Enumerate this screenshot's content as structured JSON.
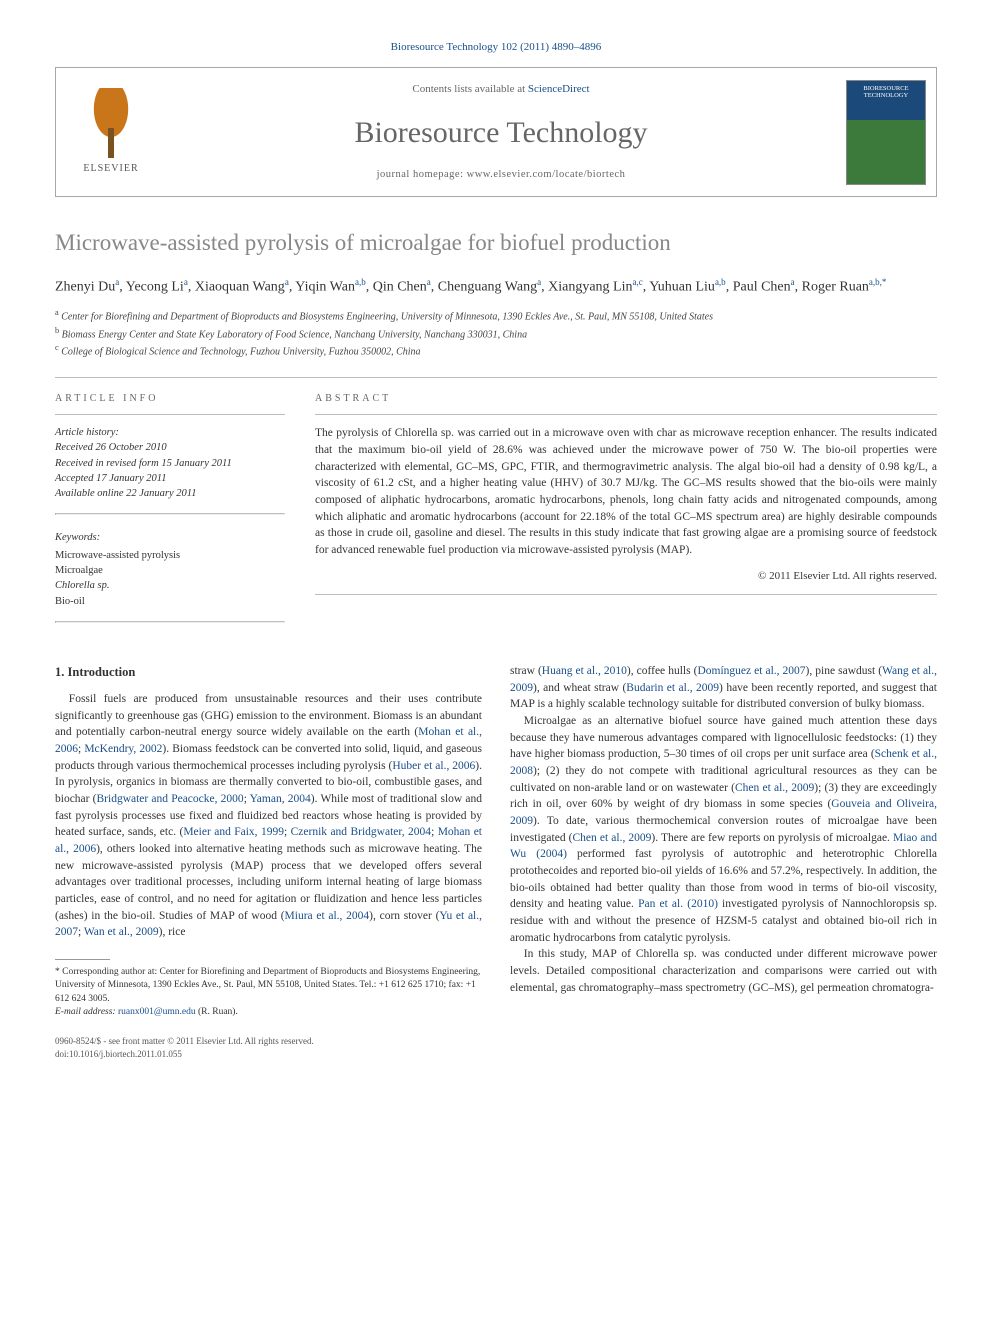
{
  "journal_ref": {
    "prefix": "Bioresource Technology 102 (2011) 4890–4896",
    "link_text": ""
  },
  "header": {
    "contents_prefix": "Contents lists available at ",
    "contents_link": "ScienceDirect",
    "journal_name": "Bioresource Technology",
    "homepage_prefix": "journal homepage: ",
    "homepage_url": "www.elsevier.com/locate/biortech",
    "elsevier_label": "ELSEVIER",
    "cover_text": "BIORESOURCE TECHNOLOGY"
  },
  "article": {
    "title": "Microwave-assisted pyrolysis of microalgae for biofuel production",
    "authors_html": "Zhenyi Du<sup>a</sup>, Yecong Li<sup>a</sup>, Xiaoquan Wang<sup>a</sup>, Yiqin Wan<sup>a,b</sup>, Qin Chen<sup>a</sup>, Chenguang Wang<sup>a</sup>, Xiangyang Lin<sup>a,c</sup>, Yuhuan Liu<sup>a,b</sup>, Paul Chen<sup>a</sup>, Roger Ruan<sup>a,b,*</sup>",
    "affiliations": [
      "a Center for Biorefining and Department of Bioproducts and Biosystems Engineering, University of Minnesota, 1390 Eckles Ave., St. Paul, MN 55108, United States",
      "b Biomass Energy Center and State Key Laboratory of Food Science, Nanchang University, Nanchang 330031, China",
      "c College of Biological Science and Technology, Fuzhou University, Fuzhou 350002, China"
    ]
  },
  "info": {
    "label": "ARTICLE INFO",
    "history_label": "Article history:",
    "history": [
      "Received 26 October 2010",
      "Received in revised form 15 January 2011",
      "Accepted 17 January 2011",
      "Available online 22 January 2011"
    ],
    "keywords_label": "Keywords:",
    "keywords": [
      "Microwave-assisted pyrolysis",
      "Microalgae",
      "Chlorella sp.",
      "Bio-oil"
    ]
  },
  "abstract": {
    "label": "ABSTRACT",
    "text": "The pyrolysis of Chlorella sp. was carried out in a microwave oven with char as microwave reception enhancer. The results indicated that the maximum bio-oil yield of 28.6% was achieved under the microwave power of 750 W. The bio-oil properties were characterized with elemental, GC–MS, GPC, FTIR, and thermogravimetric analysis. The algal bio-oil had a density of 0.98 kg/L, a viscosity of 61.2 cSt, and a higher heating value (HHV) of 30.7 MJ/kg. The GC–MS results showed that the bio-oils were mainly composed of aliphatic hydrocarbons, aromatic hydrocarbons, phenols, long chain fatty acids and nitrogenated compounds, among which aliphatic and aromatic hydrocarbons (account for 22.18% of the total GC–MS spectrum area) are highly desirable compounds as those in crude oil, gasoline and diesel. The results in this study indicate that fast growing algae are a promising source of feedstock for advanced renewable fuel production via microwave-assisted pyrolysis (MAP).",
    "copyright": "© 2011 Elsevier Ltd. All rights reserved."
  },
  "body": {
    "section_heading": "1. Introduction",
    "col1_p1": "Fossil fuels are produced from unsustainable resources and their uses contribute significantly to greenhouse gas (GHG) emission to the environment. Biomass is an abundant and potentially carbon-neutral energy source widely available on the earth (Mohan et al., 2006; McKendry, 2002). Biomass feedstock can be converted into solid, liquid, and gaseous products through various thermochemical processes including pyrolysis (Huber et al., 2006). In pyrolysis, organics in biomass are thermally converted to bio-oil, combustible gases, and biochar (Bridgwater and Peacocke, 2000; Yaman, 2004). While most of traditional slow and fast pyrolysis processes use fixed and fluidized bed reactors whose heating is provided by heated surface, sands, etc. (Meier and Faix, 1999; Czernik and Bridgwater, 2004; Mohan et al., 2006), others looked into alternative heating methods such as microwave heating. The new microwave-assisted pyrolysis (MAP) process that we developed offers several advantages over traditional processes, including uniform internal heating of large biomass particles, ease of control, and no need for agitation or fluidization and hence less particles (ashes) in the bio-oil. Studies of MAP of wood (Miura et al., 2004), corn stover (Yu et al., 2007; Wan et al., 2009), rice",
    "col2_p1": "straw (Huang et al., 2010), coffee hulls (Domínguez et al., 2007), pine sawdust (Wang et al., 2009), and wheat straw (Budarin et al., 2009) have been recently reported, and suggest that MAP is a highly scalable technology suitable for distributed conversion of bulky biomass.",
    "col2_p2": "Microalgae as an alternative biofuel source have gained much attention these days because they have numerous advantages compared with lignocellulosic feedstocks: (1) they have higher biomass production, 5–30 times of oil crops per unit surface area (Schenk et al., 2008); (2) they do not compete with traditional agricultural resources as they can be cultivated on non-arable land or on wastewater (Chen et al., 2009); (3) they are exceedingly rich in oil, over 60% by weight of dry biomass in some species (Gouveia and Oliveira, 2009). To date, various thermochemical conversion routes of microalgae have been investigated (Chen et al., 2009). There are few reports on pyrolysis of microalgae. Miao and Wu (2004) performed fast pyrolysis of autotrophic and heterotrophic Chlorella protothecoides and reported bio-oil yields of 16.6% and 57.2%, respectively. In addition, the bio-oils obtained had better quality than those from wood in terms of bio-oil viscosity, density and heating value. Pan et al. (2010) investigated pyrolysis of Nannochloropsis sp. residue with and without the presence of HZSM-5 catalyst and obtained bio-oil rich in aromatic hydrocarbons from catalytic pyrolysis.",
    "col2_p3": "In this study, MAP of Chlorella sp. was conducted under different microwave power levels. Detailed compositional characterization and comparisons were carried out with elemental, gas chromatography–mass spectrometry (GC–MS), gel permeation chromatogra-"
  },
  "footnote": {
    "corr": "* Corresponding author at: Center for Biorefining and Department of Bioproducts and Biosystems Engineering, University of Minnesota, 1390 Eckles Ave., St. Paul, MN 55108, United States. Tel.: +1 612 625 1710; fax: +1 612 624 3005.",
    "email_label": "E-mail address: ",
    "email": "ruanx001@umn.edu",
    "email_suffix": " (R. Ruan)."
  },
  "footer": {
    "line1": "0960-8524/$ - see front matter © 2011 Elsevier Ltd. All rights reserved.",
    "line2": "doi:10.1016/j.biortech.2011.01.055"
  },
  "colors": {
    "link": "#1a4f8a",
    "title_gray": "#878787",
    "rule": "#bdbdbd",
    "text": "#333333"
  }
}
